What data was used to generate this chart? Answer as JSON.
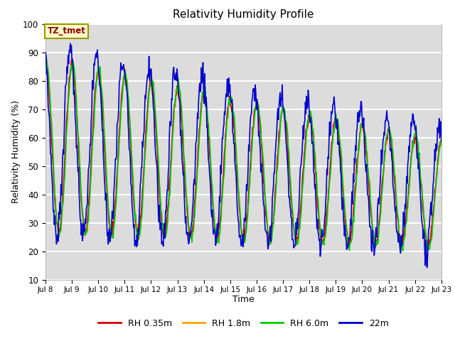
{
  "title": "Relativity Humidity Profile",
  "xlabel": "Time",
  "ylabel": "Relativity Humidity (%)",
  "ylim": [
    10,
    100
  ],
  "annotation": "TZ_tmet",
  "annotation_color": "#8B0000",
  "annotation_bg": "#FFFFCC",
  "annotation_border": "#999900",
  "series": [
    {
      "label": "RH 0.35m",
      "color": "#DD0000"
    },
    {
      "label": "RH 1.8m",
      "color": "#FFA500"
    },
    {
      "label": "RH 6.0m",
      "color": "#00CC00"
    },
    {
      "label": "22m",
      "color": "#0000CC"
    }
  ],
  "xtick_labels": [
    "Jul 8",
    "Jul 9",
    "Jul 10",
    "Jul 11",
    "Jul 12",
    "Jul 13",
    "Jul 14",
    "Jul 15",
    "Jul 16",
    "Jul 17",
    "Jul 18",
    "Jul 19",
    "Jul 20",
    "Jul 21",
    "Jul 22",
    "Jul 23"
  ],
  "ytick_values": [
    10,
    20,
    30,
    40,
    50,
    60,
    70,
    80,
    90,
    100
  ],
  "grid_color": "#FFFFFF",
  "plot_bg": "#DCDCDC",
  "fig_bg": "#FFFFFF"
}
